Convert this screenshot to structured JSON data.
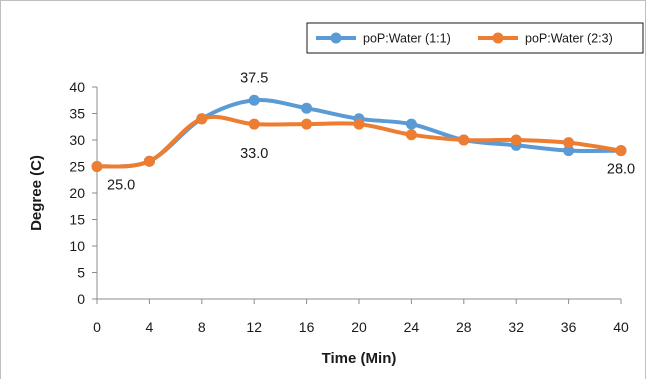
{
  "chart_data": {
    "type": "line",
    "title": "",
    "xlabel": "Time (Min)",
    "ylabel": "Degree (C)",
    "x": [
      0,
      4,
      8,
      12,
      16,
      20,
      24,
      28,
      32,
      36,
      40
    ],
    "xlim": [
      0,
      40
    ],
    "ylim": [
      0,
      40
    ],
    "y_ticks": [
      0,
      5,
      10,
      15,
      20,
      25,
      30,
      35,
      40
    ],
    "grid": false,
    "smooth": true,
    "legend_position": "top-right",
    "series": [
      {
        "name": "poP:Water (1:1)",
        "color": "#5b9bd5",
        "values": [
          25.0,
          26.0,
          34.0,
          37.5,
          36.0,
          34.0,
          33.0,
          30.0,
          29.0,
          28.0,
          28.0
        ]
      },
      {
        "name": "poP:Water (2:3)",
        "color": "#ed7d31",
        "values": [
          25.0,
          26.0,
          34.0,
          33.0,
          33.0,
          33.0,
          31.0,
          30.0,
          30.0,
          29.5,
          28.0
        ]
      }
    ],
    "annotations": [
      {
        "text": "25.0",
        "series": 0,
        "x": 0
      },
      {
        "text": "37.5",
        "series": 0,
        "x": 12
      },
      {
        "text": "33.0",
        "series": 1,
        "x": 12
      },
      {
        "text": "28.0",
        "series": 1,
        "x": 40
      }
    ]
  }
}
